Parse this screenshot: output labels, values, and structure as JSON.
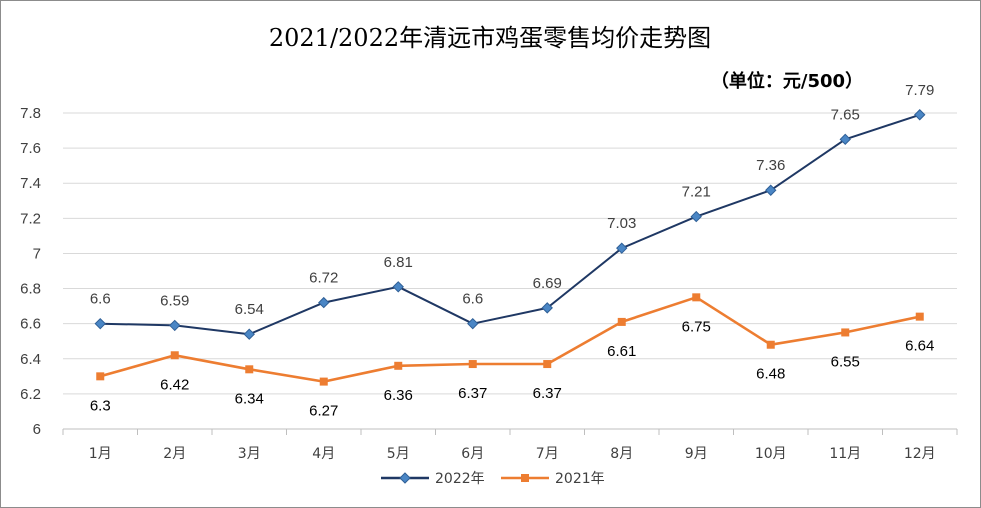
{
  "chart_data": {
    "type": "line",
    "title": "2021/2022年清远市鸡蛋零售均价走势图",
    "unit_note": "（单位：元/500）",
    "categories": [
      "1月",
      "2月",
      "3月",
      "4月",
      "5月",
      "6月",
      "7月",
      "8月",
      "9月",
      "10月",
      "11月",
      "12月"
    ],
    "series": [
      {
        "name": "2022年",
        "color": "#1f3864",
        "marker": "diamond",
        "values": [
          6.6,
          6.59,
          6.54,
          6.72,
          6.81,
          6.6,
          6.69,
          7.03,
          7.21,
          7.36,
          7.65,
          7.79
        ],
        "labels": [
          "6.6",
          "6.59",
          "6.54",
          "6.72",
          "6.81",
          "6.6",
          "6.69",
          "7.03",
          "7.21",
          "7.36",
          "7.65",
          "7.79"
        ],
        "label_position": "above"
      },
      {
        "name": "2021年",
        "color": "#ed7d31",
        "marker": "square",
        "values": [
          6.3,
          6.42,
          6.34,
          6.27,
          6.36,
          6.37,
          6.37,
          6.61,
          6.75,
          6.48,
          6.55,
          6.64
        ],
        "labels": [
          "6.3",
          "6.42",
          "6.34",
          "6.27",
          "6.36",
          "6.37",
          "6.37",
          "6.61",
          "6.75",
          "6.48",
          "6.55",
          "6.64"
        ],
        "label_position": "below"
      }
    ],
    "ylim": [
      6,
      7.8
    ],
    "yticks": [
      "6",
      "6.2",
      "6.4",
      "6.6",
      "6.8",
      "7",
      "7.2",
      "7.4",
      "7.6",
      "7.8"
    ],
    "grid": true,
    "legend_position": "bottom"
  }
}
